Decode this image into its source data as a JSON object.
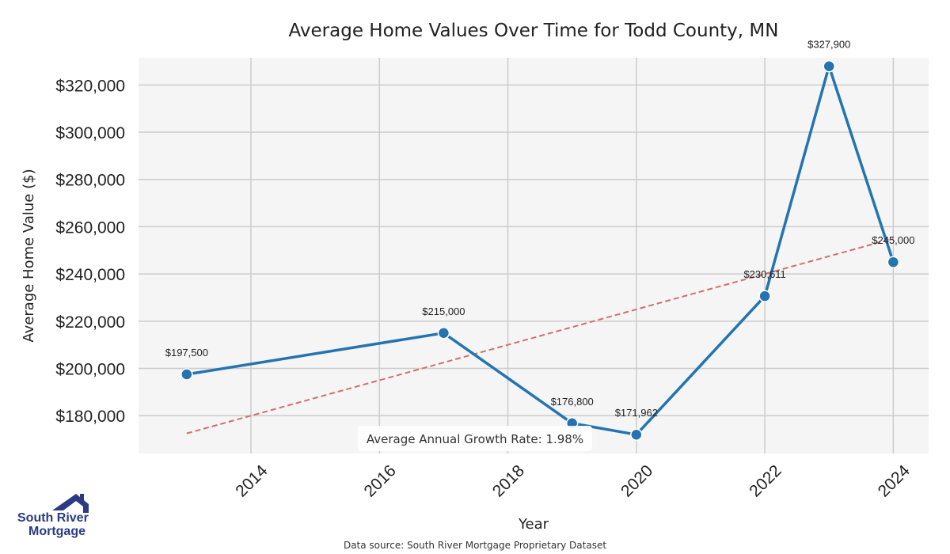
{
  "chart_data": {
    "type": "line",
    "title": "Average Home Values Over Time for Todd County, MN",
    "xlabel": "Year",
    "ylabel": "Average Home Value ($)",
    "xlim": [
      2012.25,
      2024.55
    ],
    "ylim": [
      164000,
      331500
    ],
    "x_ticks": [
      2014,
      2016,
      2018,
      2020,
      2022,
      2024
    ],
    "x_tick_labels": [
      "2014",
      "2016",
      "2018",
      "2020",
      "2022",
      "2024"
    ],
    "y_ticks": [
      180000,
      200000,
      220000,
      240000,
      260000,
      280000,
      300000,
      320000
    ],
    "y_tick_labels": [
      "$180,000",
      "$200,000",
      "$220,000",
      "$240,000",
      "$260,000",
      "$280,000",
      "$300,000",
      "$320,000"
    ],
    "grid": true,
    "series": [
      {
        "x": [
          2013,
          2017,
          2019,
          2020,
          2022,
          2023,
          2024
        ],
        "values": [
          197500,
          215000,
          176800,
          171962,
          230611,
          327900,
          245000
        ],
        "labels": [
          "$197,500",
          "$215,000",
          "$176,800",
          "$171,962",
          "$230,611",
          "$327,900",
          "$245,000"
        ],
        "color": "#2474b0"
      }
    ],
    "trendline": {
      "x": [
        2013,
        2024
      ],
      "values": [
        172500,
        255000
      ],
      "color": "#d07070",
      "style": "dashed"
    },
    "annotation": "Average Annual Growth Rate: 1.98%",
    "source": "Data source: South River Mortgage Proprietary Dataset"
  },
  "logo": {
    "line1": "South River",
    "line2": "Mortgage",
    "color": "#2b3a82"
  },
  "colors": {
    "plot_background": "#f5f5f5",
    "grid": "#cccccc"
  }
}
